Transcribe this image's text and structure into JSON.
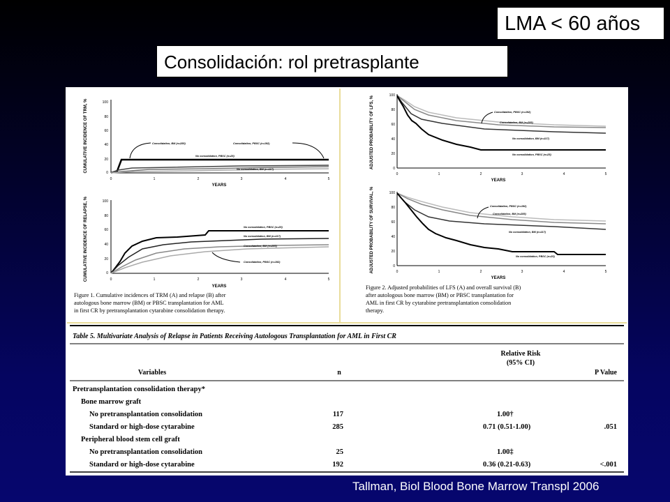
{
  "header": {
    "corner_label": "LMA < 60 años",
    "slide_title": "Consolidación: rol pretrasplante"
  },
  "figure1": {
    "panel_a": {
      "ylabel": "CUMULATIVE INCIDENCE OF TRM, %",
      "xlabel": "YEARS",
      "yticks": [
        "100",
        "80",
        "60",
        "40",
        "20",
        "0"
      ],
      "xticks": [
        "0",
        "1",
        "2",
        "3",
        "4",
        "5"
      ],
      "legends": [
        "Consolidation, BM (n=285)",
        "Consolidation, PBSC (n=192)",
        "No consolidation, PBSC (n=25)",
        "No consolidation, BM (n=117)"
      ]
    },
    "panel_b": {
      "ylabel": "CUMULATIVE INCIDENCE OF RELAPSE, %",
      "xlabel": "YEARS",
      "yticks": [
        "100",
        "80",
        "60",
        "40",
        "20",
        "0"
      ],
      "xticks": [
        "0",
        "1",
        "2",
        "3",
        "4",
        "5"
      ],
      "legends": [
        "No consolidation, PBSC (n=25)",
        "No consolidation, BM (n=117)",
        "Consolidation, BM (n=285)",
        "Consolidation, PBSC (n=192)"
      ]
    },
    "caption": [
      "Figure 1. Cumulative incidences of TRM (A) and relapse (B) after",
      "autologous bone marrow (BM) or PBSC transplantation for AML",
      "in first CR by pretransplantation cytarabine consolidation therapy."
    ]
  },
  "figure2": {
    "panel_a": {
      "ylabel": "ADJUSTED PROBABILITY OF LFS, %",
      "xlabel": "YEARS",
      "yticks": [
        "100",
        "80",
        "60",
        "40",
        "20",
        "0"
      ],
      "xticks": [
        "0",
        "1",
        "2",
        "3",
        "4",
        "5"
      ],
      "legends": [
        "Consolidation, PBSC (n=192)",
        "Consolidation, BM (n=285)",
        "No consolidation, BM (n=117)",
        "No consolidation, PBSC (n=25)"
      ]
    },
    "panel_b": {
      "ylabel": "ADJUSTED PROBABILITY OF SURVIVAL, %",
      "xlabel": "YEARS",
      "yticks": [
        "100",
        "80",
        "60",
        "40",
        "20",
        "0"
      ],
      "xticks": [
        "0",
        "1",
        "2",
        "3",
        "4",
        "5"
      ],
      "legends": [
        "Consolidation, PBSC (n=192)",
        "Consolidation, BM (n=285)",
        "No consolidation, BM (n=117)",
        "No consolidation, PBSC (n=25)"
      ]
    },
    "caption": [
      "Figure 2. Adjusted probabilities of LFS (A) and overall survival (B)",
      "after autologous bone marrow (BM) or PBSC transplantation for",
      "AML in first CR by cytarabine pretransplantation consolidation",
      "therapy."
    ]
  },
  "table5": {
    "title": "Table 5. Multivariate Analysis of Relapse in Patients Receiving Autologous Transplantation for AML in First CR",
    "col_headers": {
      "variables": "Variables",
      "n": "n",
      "rr_line1": "Relative Risk",
      "rr_line2": "(95% CI)",
      "p": "P Value"
    },
    "section": "Pretransplantation consolidation therapy*",
    "groups": [
      {
        "name": "Bone marrow graft",
        "rows": [
          {
            "variable": "No pretransplantation consolidation",
            "n": "117",
            "rr": "1.00†",
            "p": ""
          },
          {
            "variable": "Standard or high-dose cytarabine",
            "n": "285",
            "rr": "0.71 (0.51-1.00)",
            "p": ".051"
          }
        ]
      },
      {
        "name": "Peripheral blood stem cell graft",
        "rows": [
          {
            "variable": "No pretransplantation consolidation",
            "n": "25",
            "rr": "1.00‡",
            "p": ""
          },
          {
            "variable": "Standard or high-dose cytarabine",
            "n": "192",
            "rr": "0.36 (0.21-0.63)",
            "p": "<.001"
          }
        ]
      }
    ]
  },
  "citation": "Tallman, Biol Blood Bone Marrow Transpl 2006"
}
